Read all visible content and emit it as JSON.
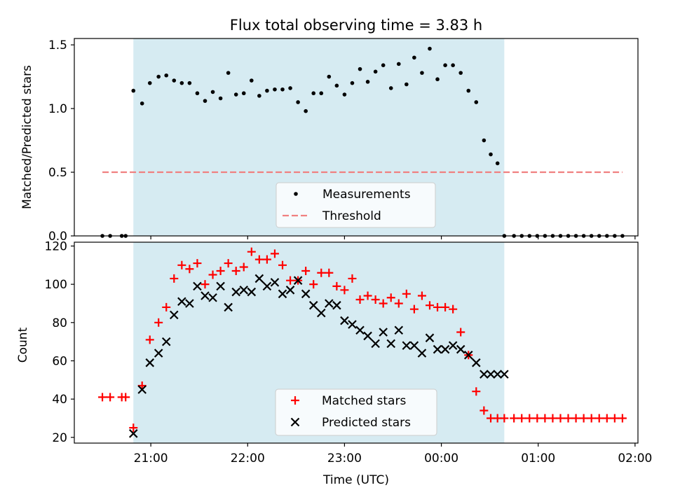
{
  "chart_data": [
    {
      "type": "scatter",
      "title": "Flux total observing time = 3.83 h",
      "ylabel": "Matched/Predicted stars",
      "xlabel": "",
      "xlim": [
        -0.79,
        5.03
      ],
      "ylim": [
        0.0,
        1.55
      ],
      "yticks": [
        0.0,
        0.5,
        1.0,
        1.5
      ],
      "ytick_labels": [
        "0.0",
        "0.5",
        "1.0",
        "1.5"
      ],
      "xticks": [
        0,
        1,
        2,
        3,
        4,
        5
      ],
      "shaded_region": [
        -0.18,
        3.65
      ],
      "legend": {
        "placement": "lower center",
        "entries": [
          "Measurements",
          "Threshold"
        ]
      },
      "series": [
        {
          "name": "Measurements",
          "style": "dots",
          "color": "#000000",
          "x": [
            -0.5,
            -0.42,
            -0.3,
            -0.26,
            -0.18,
            -0.09,
            -0.01,
            0.08,
            0.16,
            0.24,
            0.32,
            0.4,
            0.48,
            0.56,
            0.64,
            0.72,
            0.8,
            0.88,
            0.96,
            1.04,
            1.12,
            1.2,
            1.28,
            1.36,
            1.44,
            1.52,
            1.6,
            1.68,
            1.76,
            1.84,
            1.92,
            2.0,
            2.08,
            2.16,
            2.24,
            2.32,
            2.4,
            2.48,
            2.56,
            2.64,
            2.72,
            2.8,
            2.88,
            2.96,
            3.04,
            3.12,
            3.2,
            3.28,
            3.36,
            3.44,
            3.51,
            3.58,
            3.65,
            3.75,
            3.83,
            3.91,
            3.99,
            4.07,
            4.15,
            4.23,
            4.31,
            4.39,
            4.47,
            4.55,
            4.63,
            4.71,
            4.79,
            4.87
          ],
          "y": [
            0,
            0,
            0,
            0,
            1.14,
            1.04,
            1.2,
            1.25,
            1.26,
            1.22,
            1.2,
            1.2,
            1.12,
            1.06,
            1.13,
            1.08,
            1.28,
            1.11,
            1.12,
            1.22,
            1.1,
            1.14,
            1.15,
            1.15,
            1.16,
            1.05,
            0.98,
            1.12,
            1.12,
            1.25,
            1.18,
            1.11,
            1.2,
            1.31,
            1.21,
            1.29,
            1.34,
            1.16,
            1.35,
            1.19,
            1.4,
            1.28,
            1.47,
            1.23,
            1.34,
            1.34,
            1.28,
            1.14,
            1.05,
            0.75,
            0.64,
            0.57,
            0,
            0,
            0,
            0,
            0,
            0,
            0,
            0,
            0,
            0,
            0,
            0,
            0,
            0,
            0,
            0
          ]
        },
        {
          "name": "Threshold",
          "style": "dashed",
          "color": "#f08080",
          "x": [
            -0.5,
            4.87
          ],
          "y": [
            0.5,
            0.5
          ]
        }
      ]
    },
    {
      "type": "scatter",
      "title": "",
      "ylabel": "Count",
      "xlabel": "Time (UTC)",
      "xlim": [
        -0.79,
        5.03
      ],
      "ylim": [
        17,
        122
      ],
      "yticks": [
        20,
        40,
        60,
        80,
        100,
        120
      ],
      "ytick_labels": [
        "20",
        "40",
        "60",
        "80",
        "100",
        "120"
      ],
      "xticks": [
        0,
        1,
        2,
        3,
        4,
        5
      ],
      "xtick_labels": [
        "21:00",
        "22:00",
        "23:00",
        "00:00",
        "01:00",
        "02:00"
      ],
      "shaded_region": [
        -0.18,
        3.65
      ],
      "legend": {
        "placement": "lower center",
        "entries": [
          "Matched stars",
          "Predicted stars"
        ]
      },
      "series": [
        {
          "name": "Matched stars",
          "marker": "+",
          "color": "#ff0000",
          "x": [
            -0.5,
            -0.42,
            -0.3,
            -0.26,
            -0.18,
            -0.09,
            -0.01,
            0.08,
            0.16,
            0.24,
            0.32,
            0.4,
            0.48,
            0.56,
            0.64,
            0.72,
            0.8,
            0.88,
            0.96,
            1.04,
            1.12,
            1.2,
            1.28,
            1.36,
            1.44,
            1.52,
            1.6,
            1.68,
            1.76,
            1.84,
            1.92,
            2.0,
            2.08,
            2.16,
            2.24,
            2.32,
            2.4,
            2.48,
            2.56,
            2.64,
            2.72,
            2.8,
            2.88,
            2.96,
            3.04,
            3.12,
            3.2,
            3.28,
            3.36,
            3.44,
            3.51,
            3.58,
            3.65,
            3.75,
            3.83,
            3.91,
            3.99,
            4.07,
            4.15,
            4.23,
            4.31,
            4.39,
            4.47,
            4.55,
            4.63,
            4.71,
            4.79,
            4.87
          ],
          "y": [
            41,
            41,
            41,
            41,
            25,
            47,
            71,
            80,
            88,
            103,
            110,
            108,
            111,
            100,
            105,
            107,
            111,
            107,
            109,
            117,
            113,
            113,
            116,
            110,
            102,
            102,
            107,
            100,
            106,
            106,
            99,
            97,
            103,
            92,
            94,
            92,
            90,
            93,
            90,
            95,
            87,
            94,
            89,
            88,
            88,
            87,
            75,
            63,
            44,
            34,
            30,
            30,
            30,
            30,
            30,
            30,
            30,
            30,
            30,
            30,
            30,
            30,
            30,
            30,
            30,
            30,
            30,
            30
          ]
        },
        {
          "name": "Predicted stars",
          "marker": "x",
          "color": "#000000",
          "x": [
            -0.18,
            -0.09,
            -0.01,
            0.08,
            0.16,
            0.24,
            0.32,
            0.4,
            0.48,
            0.56,
            0.64,
            0.72,
            0.8,
            0.88,
            0.96,
            1.04,
            1.12,
            1.2,
            1.28,
            1.36,
            1.44,
            1.52,
            1.6,
            1.68,
            1.76,
            1.84,
            1.92,
            2.0,
            2.08,
            2.16,
            2.24,
            2.32,
            2.4,
            2.48,
            2.56,
            2.64,
            2.72,
            2.8,
            2.88,
            2.96,
            3.04,
            3.12,
            3.2,
            3.28,
            3.36,
            3.44,
            3.51,
            3.58,
            3.65
          ],
          "y": [
            22,
            45,
            59,
            64,
            70,
            84,
            91,
            90,
            99,
            94,
            93,
            99,
            88,
            96,
            97,
            96,
            103,
            99,
            101,
            95,
            97,
            102,
            95,
            89,
            85,
            90,
            89,
            81,
            79,
            76,
            73,
            69,
            75,
            69,
            76,
            68,
            68,
            64,
            72,
            66,
            66,
            68,
            66,
            63,
            59,
            53,
            53,
            53,
            53
          ]
        }
      ]
    }
  ]
}
